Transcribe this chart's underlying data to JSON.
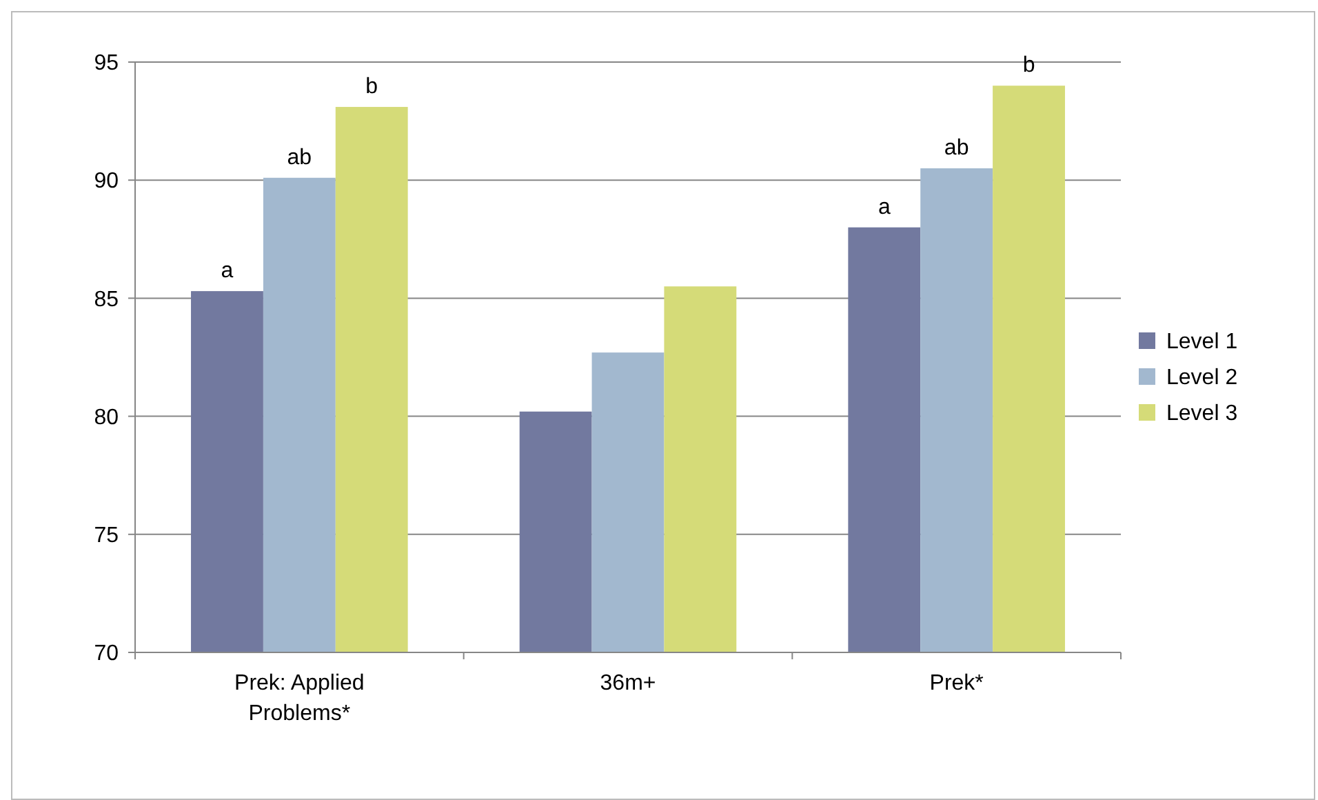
{
  "chart_data": {
    "type": "bar",
    "categories": [
      "Prek: Applied Problems*",
      "36m+",
      "Prek*"
    ],
    "series": [
      {
        "name": "Level 1",
        "color": "#72799f",
        "values": [
          85.3,
          80.2,
          88
        ],
        "value_labels": [
          "a",
          null,
          "a"
        ]
      },
      {
        "name": "Level 2",
        "color": "#a2b8cf",
        "values": [
          90.1,
          82.7,
          90.5
        ],
        "value_labels": [
          "ab",
          null,
          "ab"
        ]
      },
      {
        "name": "Level 3",
        "color": "#d5db78",
        "values": [
          93.1,
          85.5,
          94
        ],
        "value_labels": [
          "b",
          null,
          "b"
        ]
      }
    ],
    "ylim": [
      70,
      95
    ],
    "yticks": [
      70,
      75,
      80,
      85,
      90,
      95
    ],
    "grid": "y",
    "legend": "right"
  }
}
